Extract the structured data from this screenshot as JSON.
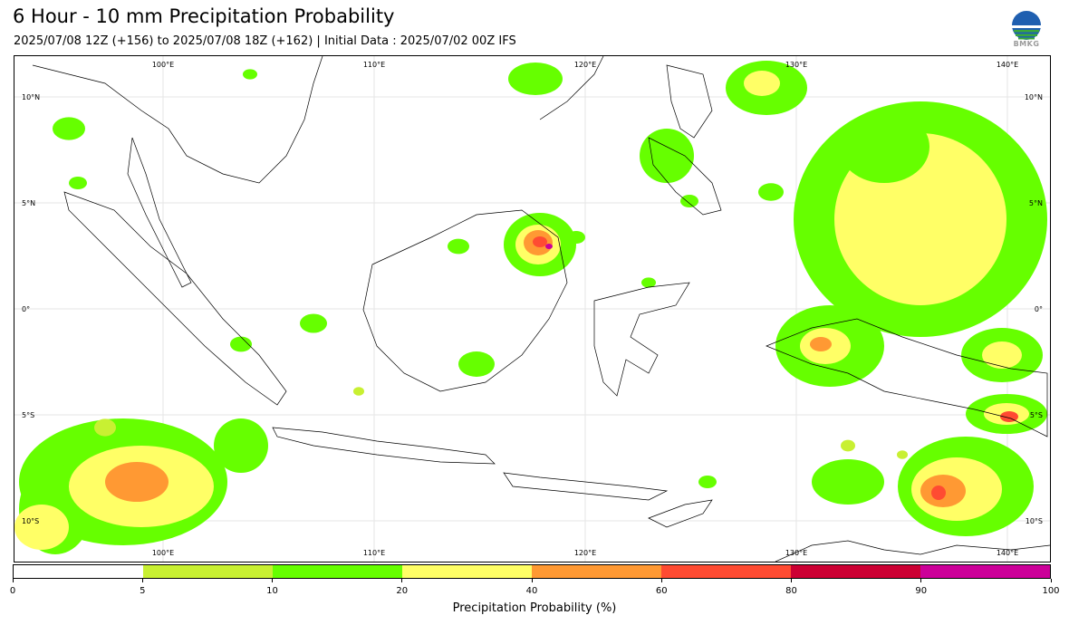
{
  "header": {
    "title": "6 Hour - 10 mm Precipitation Probability",
    "subtitle": "2025/07/08 12Z (+156) to 2025/07/08 18Z (+162) | Initial Data : 2025/07/02 00Z IFS"
  },
  "logo": {
    "icon": "bmkg-logo-icon",
    "text": "BMKG"
  },
  "map": {
    "lon_labels": [
      "100°E",
      "110°E",
      "120°E",
      "130°E",
      "140°E"
    ],
    "lat_labels": [
      "10°N",
      "5°N",
      "0°",
      "5°S",
      "10°S"
    ],
    "colors": {
      "p5": "#c8f032",
      "p10": "#66ff00",
      "p20": "#ffff66",
      "p40": "#ff9933",
      "p60": "#ff4b32",
      "p80": "#cc0033",
      "p90": "#cc0099",
      "coast": "#000000"
    }
  },
  "colorbar": {
    "ticks": [
      "0",
      "5",
      "10",
      "20",
      "40",
      "60",
      "80",
      "90",
      "100"
    ],
    "colors": [
      "#ffffff",
      "#c8f032",
      "#66ff00",
      "#ffff66",
      "#ff9933",
      "#ff4b32",
      "#cc0033",
      "#cc0099"
    ],
    "label": "Precipitation Probability (%)"
  }
}
